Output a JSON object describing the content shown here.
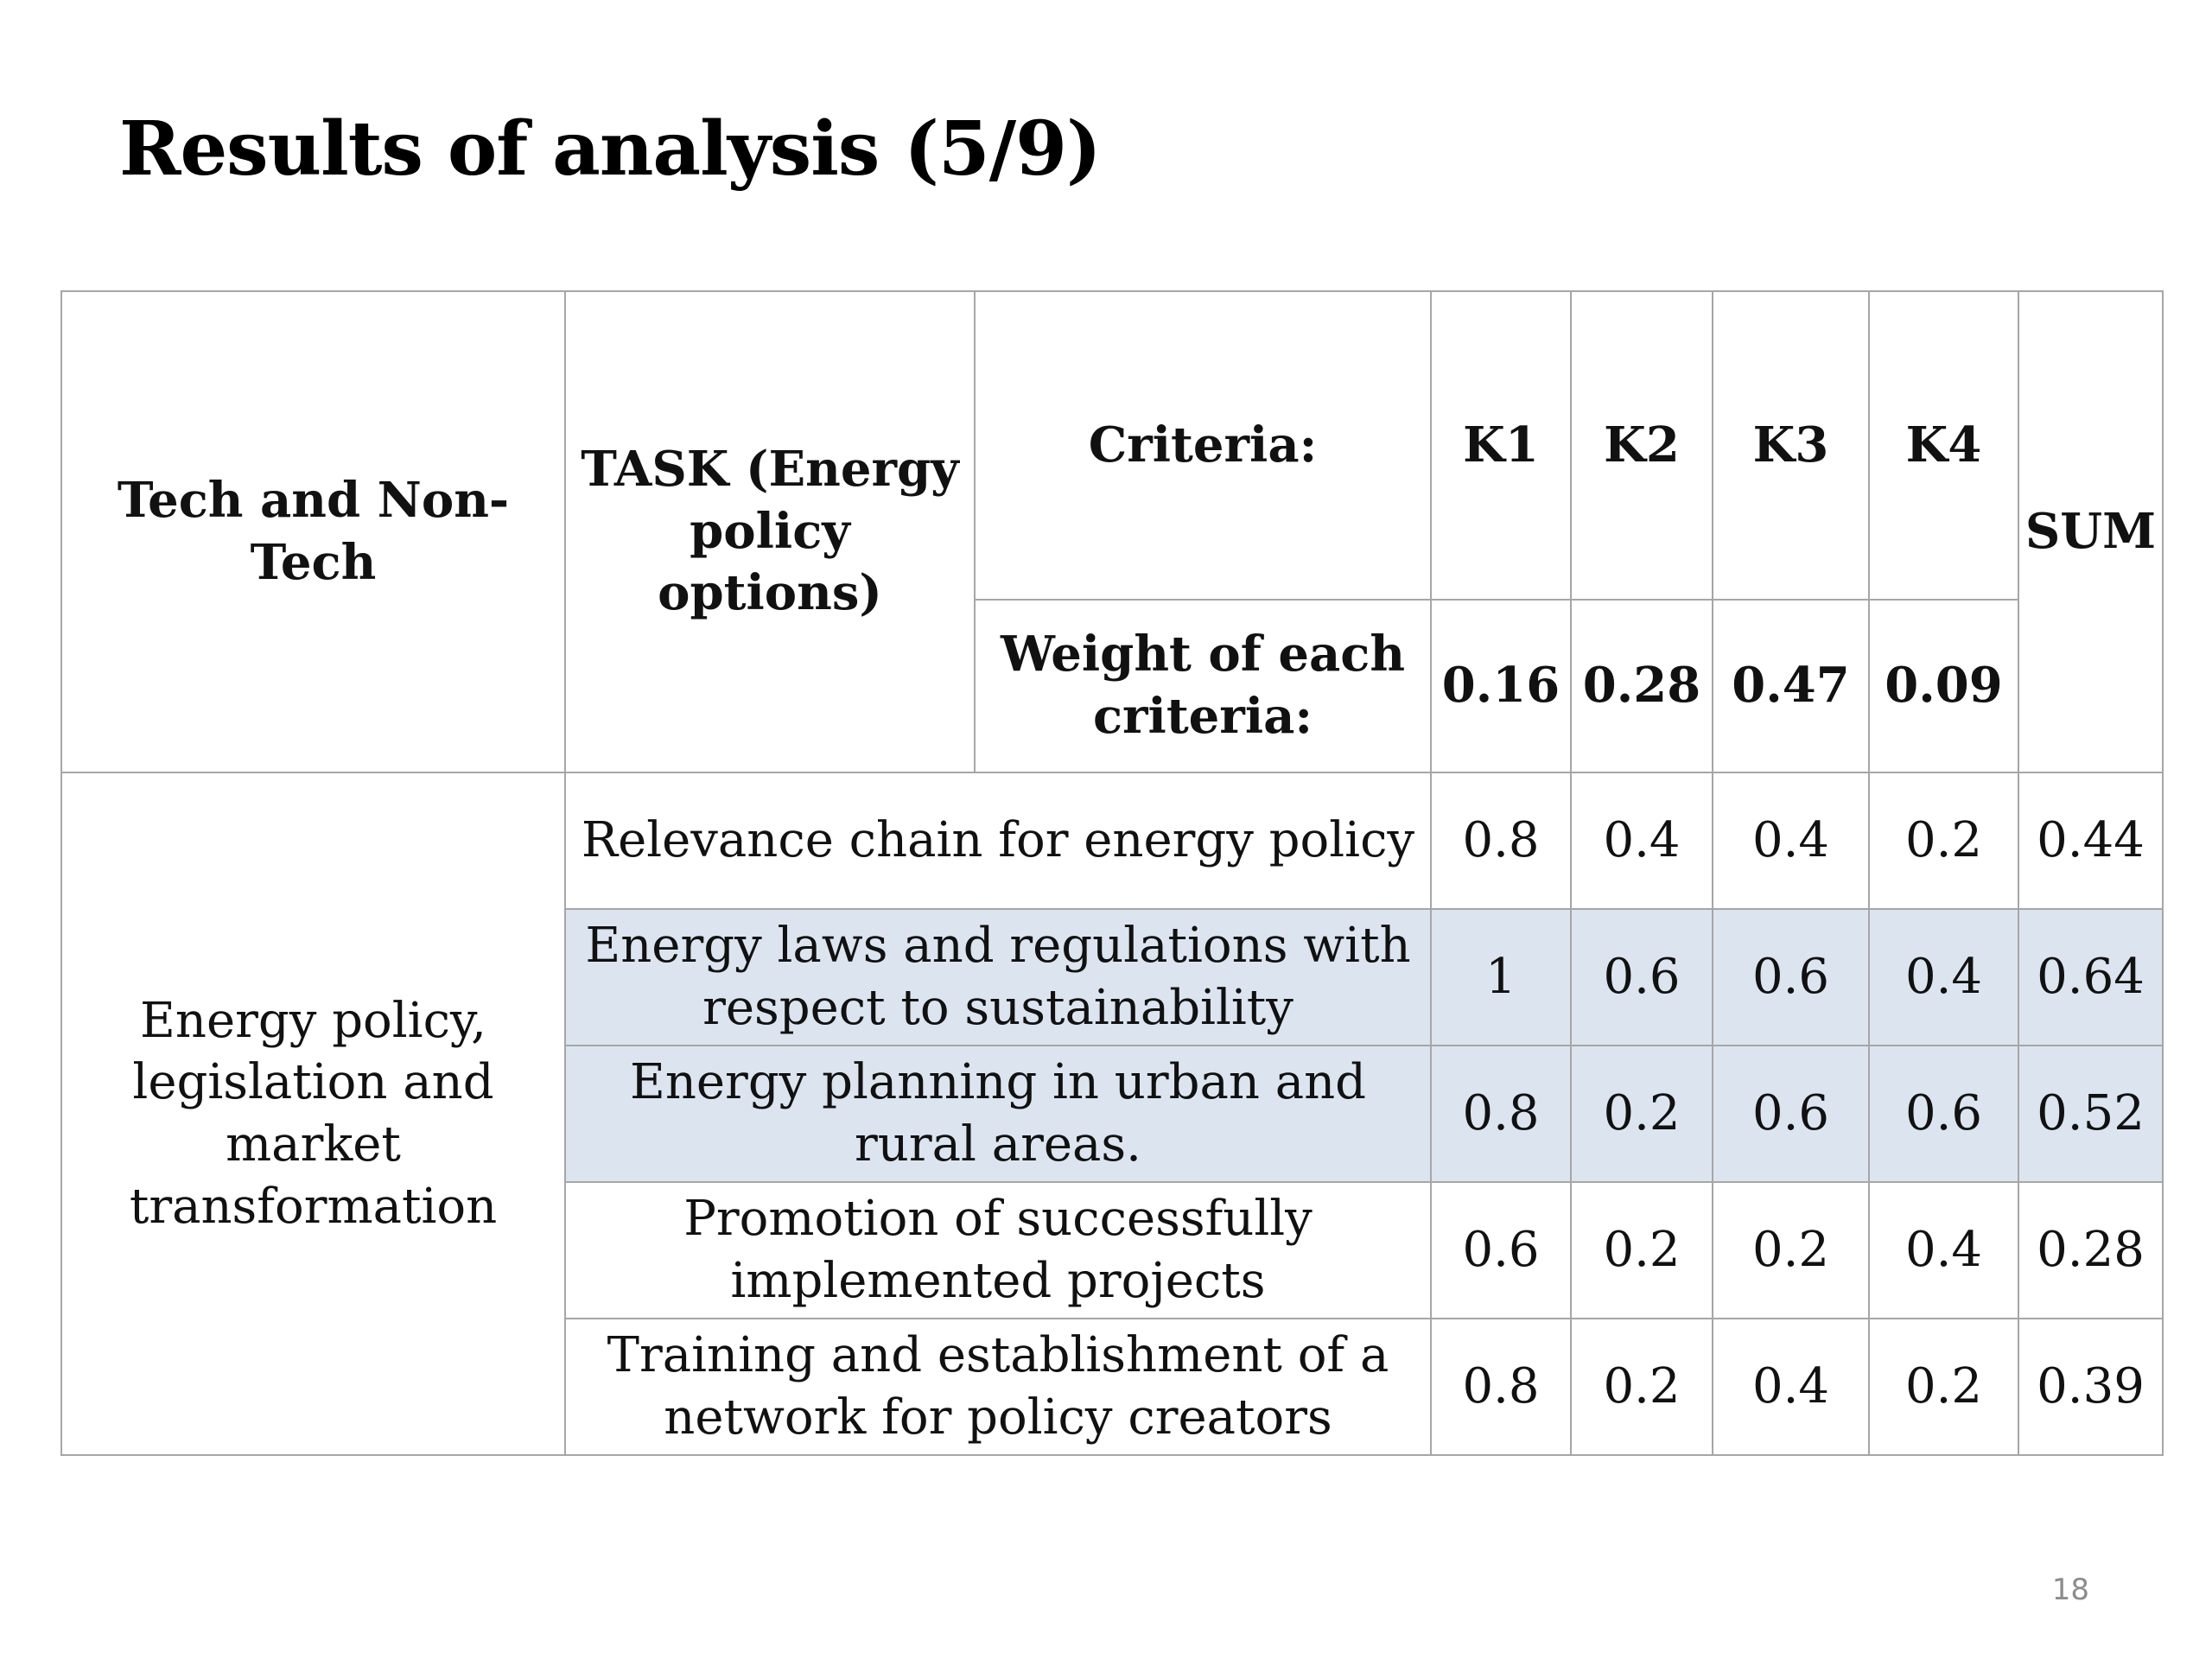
{
  "slide": {
    "title": "Results of analysis  (5/9)",
    "page_number": "18"
  },
  "table": {
    "header": {
      "group_col": "Tech and Non-Tech",
      "task_col": "TASK (Energy policy options)",
      "criteria_label": "Criteria:",
      "criteria": [
        "K1",
        "K2",
        "K3",
        "K4"
      ],
      "sum_label": "SUM",
      "weight_label": "Weight of each criteria:",
      "weights": [
        "0.16",
        "0.28",
        "0.47",
        "0.09"
      ]
    },
    "group": "Energy policy, legislation and market transformation",
    "rows": [
      {
        "task": "Relevance chain for energy policy",
        "k1": "0.8",
        "k2": "0.4",
        "k3": "0.4",
        "k4": "0.2",
        "sum": "0.44",
        "highlighted": false
      },
      {
        "task": "Energy laws and regulations with respect to sustainability",
        "k1": "1",
        "k2": "0.6",
        "k3": "0.6",
        "k4": "0.4",
        "sum": "0.64",
        "highlighted": true
      },
      {
        "task": "Energy planning in urban and rural areas.",
        "k1": "0.8",
        "k2": "0.2",
        "k3": "0.6",
        "k4": "0.6",
        "sum": "0.52",
        "highlighted": true
      },
      {
        "task": "Promotion of successfully implemented projects",
        "k1": "0.6",
        "k2": "0.2",
        "k3": "0.2",
        "k4": "0.4",
        "sum": "0.28",
        "highlighted": false
      },
      {
        "task": "Training and establishment of a network for policy creators",
        "k1": "0.8",
        "k2": "0.2",
        "k3": "0.4",
        "k4": "0.2",
        "sum": "0.39",
        "highlighted": false
      }
    ],
    "highlight_color": "#dce5ef",
    "border_color": "#a6a6a6"
  }
}
